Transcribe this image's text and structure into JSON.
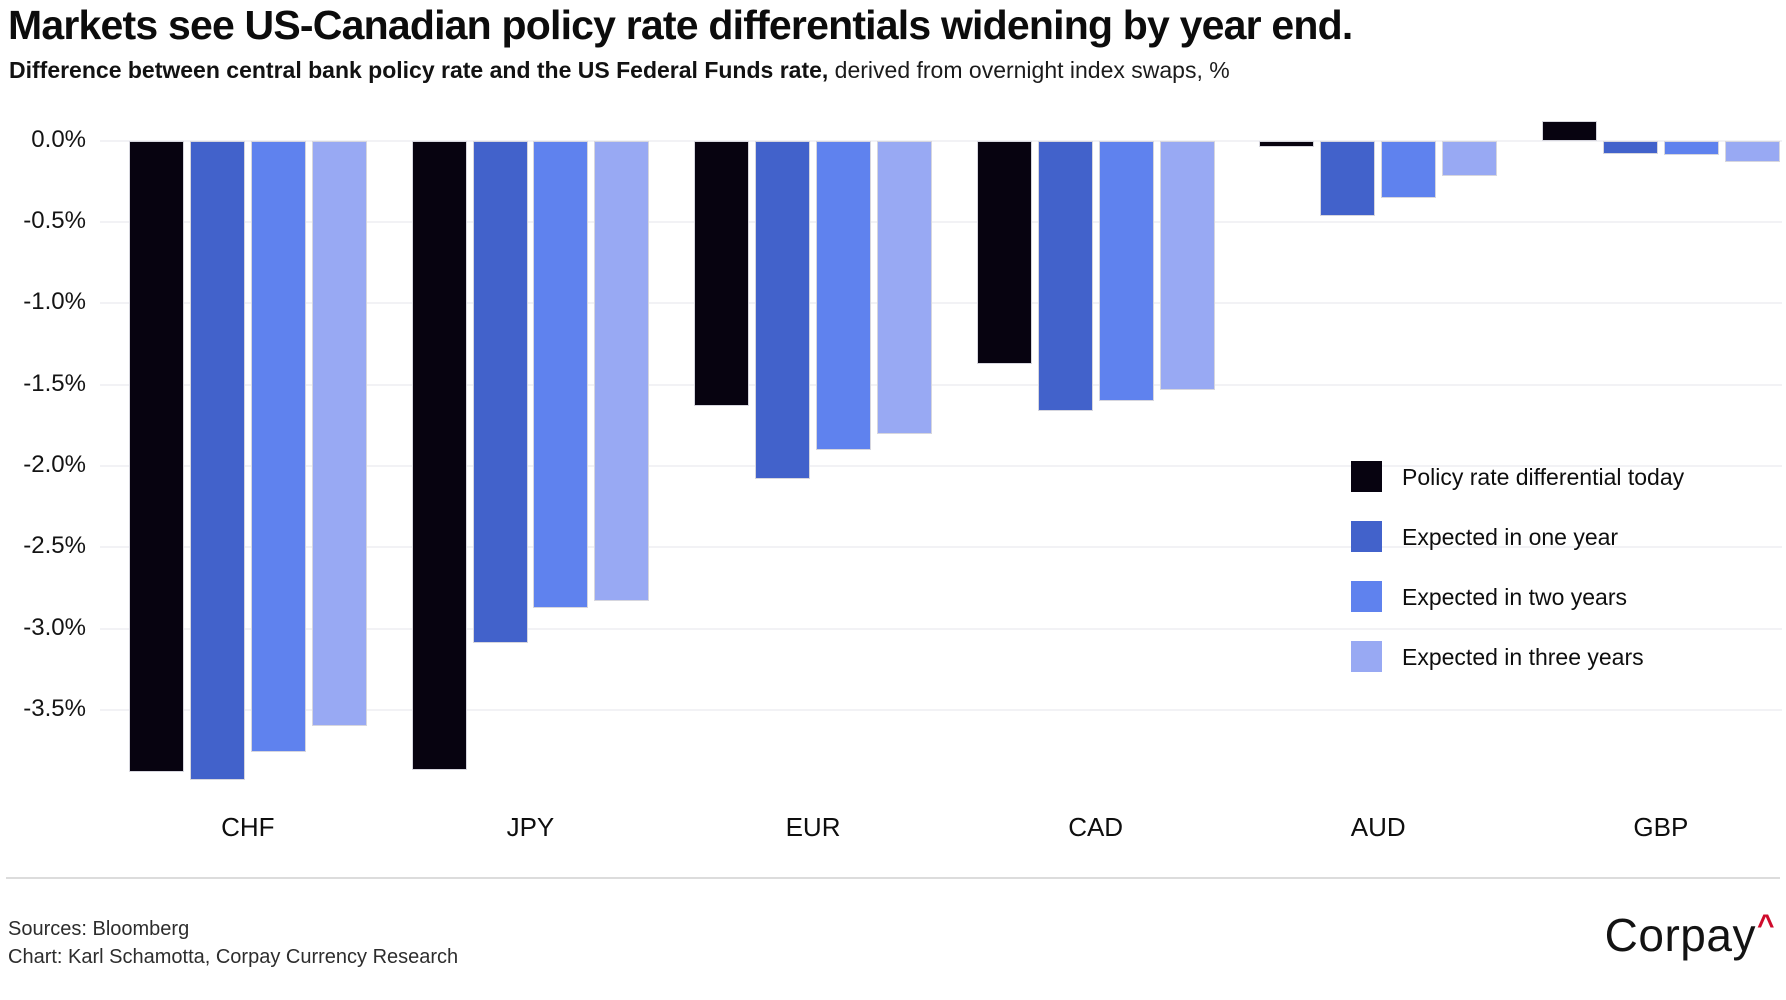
{
  "title": "Markets see US-Canadian policy rate differentials widening by year end.",
  "subtitle": {
    "bold": "Difference between central bank policy rate and the US Federal Funds rate,",
    "regular": " derived from overnight index swaps, %"
  },
  "chart_data": {
    "type": "bar",
    "categories": [
      "CHF",
      "JPY",
      "EUR",
      "CAD",
      "AUD",
      "GBP"
    ],
    "series": [
      {
        "name": "Policy rate differential today",
        "color": "#070310",
        "values": [
          -3.88,
          -3.87,
          -1.63,
          -1.37,
          -0.04,
          0.12
        ]
      },
      {
        "name": "Expected in one year",
        "color": "#4262cb",
        "values": [
          -3.93,
          -3.09,
          -2.08,
          -1.66,
          -0.46,
          -0.08
        ]
      },
      {
        "name": "Expected in two years",
        "color": "#5f82ee",
        "values": [
          -3.76,
          -2.87,
          -1.9,
          -1.6,
          -0.35,
          -0.09
        ]
      },
      {
        "name": "Expected in three years",
        "color": "#98a9f3",
        "values": [
          -3.6,
          -2.83,
          -1.8,
          -1.53,
          -0.22,
          -0.13
        ]
      }
    ],
    "ytick_labels": [
      "0.0%",
      "-0.5%",
      "-1.0%",
      "-1.5%",
      "-2.0%",
      "-2.5%",
      "-3.0%",
      "-3.5%"
    ],
    "ytick_values": [
      0.0,
      -0.5,
      -1.0,
      -1.5,
      -2.0,
      -2.5,
      -3.0,
      -3.5
    ],
    "ylim": [
      0.25,
      -4.05
    ],
    "grid": true,
    "legend_position": "middle-right",
    "bar_border_color": "#d6d6de"
  },
  "footer": {
    "sources": "Sources: Bloomberg",
    "credit": "Chart: Karl Schamotta, Corpay Currency Research"
  },
  "logo": {
    "text": "Corpay",
    "caret": "^",
    "caret_color": "#cf0b2c"
  }
}
